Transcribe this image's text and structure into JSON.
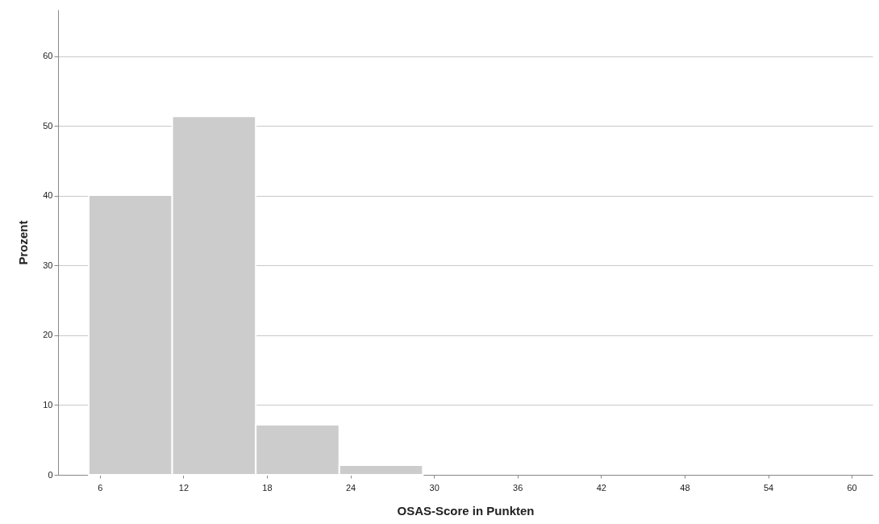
{
  "chart_data": {
    "type": "histogram",
    "xlabel": "OSAS-Score in Punkten",
    "ylabel": "Prozent",
    "bins": [
      5.2,
      11.2,
      17.2,
      23.2,
      29.2
    ],
    "values": [
      40.1,
      51.4,
      7.2,
      1.4
    ],
    "color": "#cccccc",
    "xlim": [
      3,
      61.5
    ],
    "xticks": [
      6,
      12,
      18,
      24,
      30,
      36,
      42,
      48,
      54,
      60
    ],
    "ylim": [
      0,
      66.7
    ],
    "yticks": [
      0,
      10,
      20,
      30,
      40,
      50,
      60
    ],
    "grid": "y"
  }
}
